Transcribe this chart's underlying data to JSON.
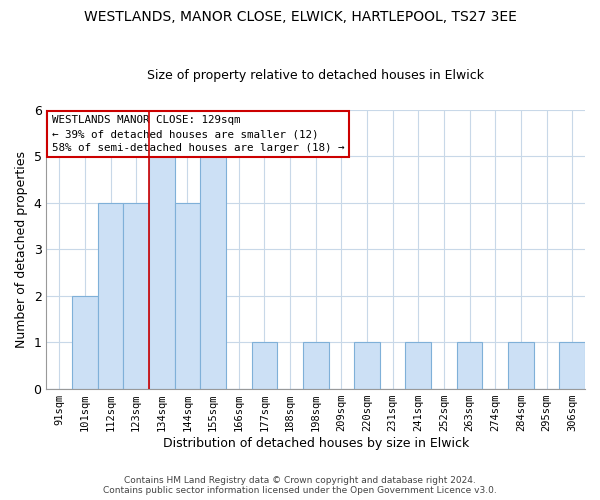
{
  "title": "WESTLANDS, MANOR CLOSE, ELWICK, HARTLEPOOL, TS27 3EE",
  "subtitle": "Size of property relative to detached houses in Elwick",
  "xlabel": "Distribution of detached houses by size in Elwick",
  "ylabel": "Number of detached properties",
  "categories": [
    "91sqm",
    "101sqm",
    "112sqm",
    "123sqm",
    "134sqm",
    "144sqm",
    "155sqm",
    "166sqm",
    "177sqm",
    "188sqm",
    "198sqm",
    "209sqm",
    "220sqm",
    "231sqm",
    "241sqm",
    "252sqm",
    "263sqm",
    "274sqm",
    "284sqm",
    "295sqm",
    "306sqm"
  ],
  "values": [
    0,
    2,
    4,
    4,
    5,
    4,
    5,
    0,
    1,
    0,
    1,
    0,
    1,
    0,
    1,
    0,
    1,
    0,
    1,
    0,
    1
  ],
  "bar_color": "#cce0f5",
  "bar_edge_color": "#7fb0d8",
  "vline_index": 4,
  "vline_color": "#cc0000",
  "annotation_box_edge_color": "#cc0000",
  "annotation_text_line1": "WESTLANDS MANOR CLOSE: 129sqm",
  "annotation_text_line2": "← 39% of detached houses are smaller (12)",
  "annotation_text_line3": "58% of semi-detached houses are larger (18) →",
  "ylim": [
    0,
    6
  ],
  "yticks": [
    0,
    1,
    2,
    3,
    4,
    5,
    6
  ],
  "footer_line1": "Contains HM Land Registry data © Crown copyright and database right 2024.",
  "footer_line2": "Contains public sector information licensed under the Open Government Licence v3.0.",
  "background_color": "#ffffff",
  "grid_color": "#c8d8e8"
}
